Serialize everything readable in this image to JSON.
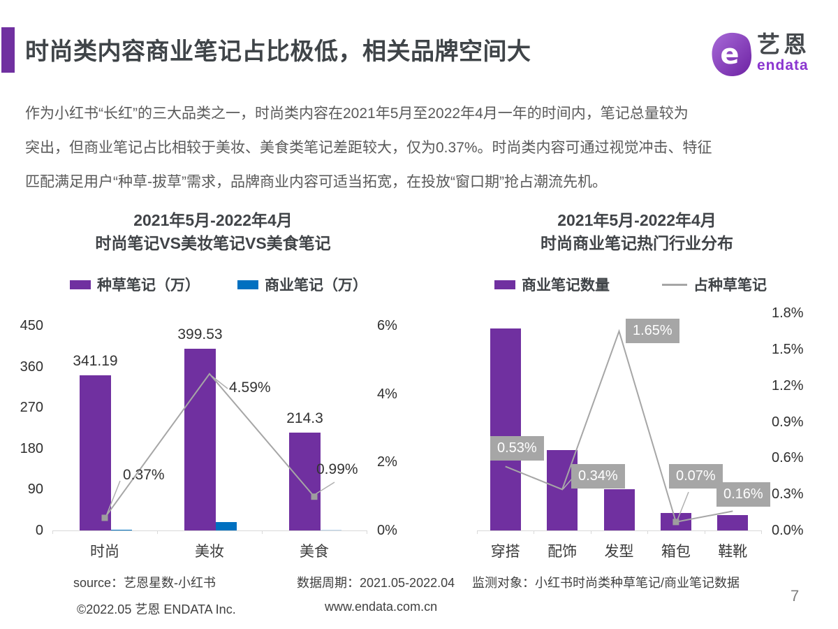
{
  "header": {
    "title": "时尚类内容商业笔记占比极低，相关品牌空间大",
    "logo_cn": "艺恩",
    "logo_en": "endata",
    "accent_color": "#7030A0"
  },
  "intro": {
    "lines": [
      "作为小红书“长红”的三大品类之一，时尚类内容在2021年5月至2022年4月一年的时间内，笔记总量较为",
      "突出，但商业笔记占比相较于美妆、美食类笔记差距较大，仅为0.37%。时尚类内容可通过视觉冲击、特征",
      "匹配满足用户“种草-拔草”需求，品牌商业内容可适当拓宽，在投放“窗口期”抢占潮流先机。"
    ]
  },
  "chart_data": [
    {
      "type": "bar",
      "title_line1": "2021年5月-2022年4月",
      "title_line2": "时尚笔记VS美妆笔记VS美食笔记",
      "categories": [
        "时尚",
        "美妆",
        "美食"
      ],
      "bar_series": [
        {
          "name": "种草笔记（万）",
          "color": "#7030A0",
          "values": [
            341.19,
            399.53,
            214.3
          ],
          "value_labels": [
            "341.19",
            "399.53",
            "214.3"
          ]
        },
        {
          "name": "商业笔记（万）",
          "color": "#0070C0",
          "values": [
            1.3,
            18.3,
            2.1
          ],
          "bar_colors": [
            "#0070C0",
            "#0070C0",
            "#BDD7EE"
          ]
        }
      ],
      "line_series": {
        "color": "#A6A6A6",
        "values": [
          0.37,
          4.59,
          0.99
        ],
        "labels": [
          "0.37%",
          "4.59%",
          "0.99%"
        ],
        "label_style": "plain"
      },
      "axes": {
        "left": {
          "ticks": [
            "450",
            "360",
            "270",
            "180",
            "90",
            "0"
          ],
          "min": 0,
          "max": 450
        },
        "right": {
          "ticks": [
            "6%",
            "4%",
            "2%",
            "0%"
          ],
          "min": 0,
          "max": 6
        }
      },
      "legend": [
        "种草笔记（万）",
        "商业笔记（万）"
      ]
    },
    {
      "type": "bar",
      "title_line1": "2021年5月-2022年4月",
      "title_line2": "时尚商业笔记热门行业分布",
      "categories": [
        "穿搭",
        "配饰",
        "发型",
        "箱包",
        "鞋靴"
      ],
      "bar_series": [
        {
          "name": "商业笔记数量",
          "color": "#7030A0",
          "values": [
            93,
            37,
            19,
            8,
            7
          ],
          "scale_max": 100
        }
      ],
      "line_series": {
        "name": "占种草笔记",
        "color": "#A6A6A6",
        "values": [
          0.53,
          0.34,
          1.65,
          0.07,
          0.16
        ],
        "labels": [
          "0.53%",
          "0.34%",
          "1.65%",
          "0.07%",
          "0.16%"
        ],
        "label_style": "boxed",
        "box_color": "#A6A6A6",
        "text_color": "#FFFFFF"
      },
      "axes": {
        "right": {
          "ticks": [
            "1.8%",
            "1.5%",
            "1.2%",
            "0.9%",
            "0.6%",
            "0.3%",
            "0.0%"
          ],
          "min": 0,
          "max": 1.8
        }
      },
      "legend": [
        "商业笔记数量",
        "占种草笔记"
      ]
    }
  ],
  "footer": {
    "source": "source：艺恩星数-小红书",
    "period": "数据周期：2021.05-2022.04",
    "monitor": "监测对象：小红书时尚类种草笔记/商业笔记数据",
    "copyright": "©2022.05 艺恩 ENDATA Inc.",
    "website": "www.endata.com.cn",
    "page_number": "7"
  }
}
